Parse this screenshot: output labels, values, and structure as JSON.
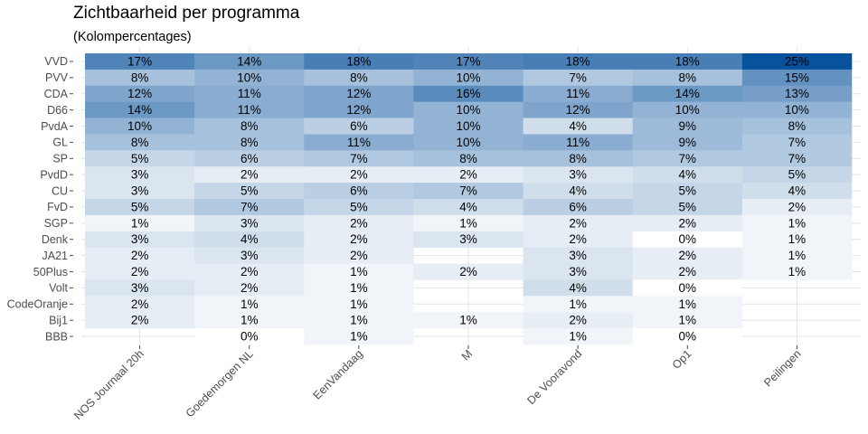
{
  "chart_data": {
    "type": "heatmap",
    "title": "Zichtbaarheid per programma",
    "subtitle": "(Kolompercentages)",
    "xlabel": "",
    "ylabel": "",
    "columns": [
      "NOS Journaal 20h",
      "Goedemorgen NL",
      "EenVandaag",
      "M",
      "De Vooravond",
      "Op1",
      "Peilingen"
    ],
    "rows": [
      "VVD",
      "PVV",
      "CDA",
      "D66",
      "PvdA",
      "GL",
      "SP",
      "PvdD",
      "CU",
      "FvD",
      "SGP",
      "Denk",
      "JA21",
      "50Plus",
      "Volt",
      "CodeOranje",
      "Bij1",
      "BBB"
    ],
    "values": [
      [
        17,
        14,
        18,
        17,
        18,
        18,
        25
      ],
      [
        8,
        10,
        8,
        10,
        7,
        8,
        15
      ],
      [
        12,
        11,
        12,
        16,
        11,
        14,
        13
      ],
      [
        14,
        11,
        12,
        10,
        12,
        10,
        10
      ],
      [
        10,
        8,
        6,
        10,
        4,
        9,
        8
      ],
      [
        8,
        8,
        11,
        10,
        11,
        9,
        7
      ],
      [
        5,
        6,
        7,
        8,
        8,
        7,
        7
      ],
      [
        3,
        2,
        2,
        2,
        3,
        4,
        5
      ],
      [
        3,
        5,
        6,
        7,
        4,
        5,
        4
      ],
      [
        5,
        7,
        5,
        4,
        6,
        5,
        2
      ],
      [
        1,
        3,
        2,
        1,
        2,
        2,
        1
      ],
      [
        3,
        4,
        2,
        3,
        2,
        0,
        1
      ],
      [
        2,
        3,
        2,
        null,
        3,
        2,
        1
      ],
      [
        2,
        2,
        1,
        2,
        3,
        2,
        1
      ],
      [
        3,
        2,
        1,
        null,
        4,
        0,
        null
      ],
      [
        2,
        1,
        1,
        null,
        1,
        1,
        null
      ],
      [
        2,
        1,
        1,
        1,
        2,
        1,
        null
      ],
      [
        null,
        0,
        1,
        null,
        1,
        0,
        null
      ]
    ],
    "value_suffix": "%",
    "color_low": "#ffffff",
    "color_high": "#08519c",
    "grid": true,
    "legend": "none"
  }
}
